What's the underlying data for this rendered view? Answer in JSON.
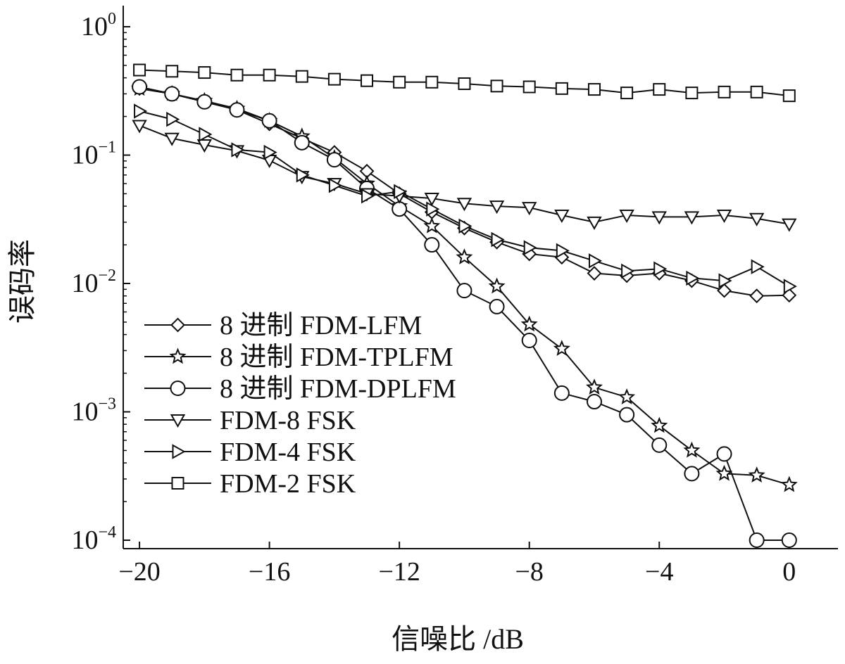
{
  "chart_data": {
    "type": "line",
    "xlabel": "信噪比 /dB",
    "ylabel": "误码率",
    "yscale": "log",
    "xlim": [
      -20.5,
      1.5
    ],
    "ylim": [
      0.0001,
      1
    ],
    "xticks": [
      -20,
      -16,
      -12,
      -8,
      -4,
      0
    ],
    "xtick_labels": [
      "−20",
      "−16",
      "−12",
      "−8",
      "−4",
      "0"
    ],
    "yticks": [
      {
        "value": 1,
        "base": "10",
        "exp": "0"
      },
      {
        "value": 0.1,
        "base": "10",
        "exp": "−1"
      },
      {
        "value": 0.01,
        "base": "10",
        "exp": "−2"
      },
      {
        "value": 0.001,
        "base": "10",
        "exp": "−3"
      },
      {
        "value": 0.0001,
        "base": "10",
        "exp": "−4"
      }
    ],
    "grid": false,
    "legend_position": "lower-left",
    "x": [
      -20,
      -19,
      -18,
      -17,
      -16,
      -15,
      -14,
      -13,
      -12,
      -11,
      -10,
      -9,
      -8,
      -7,
      -6,
      -5,
      -4,
      -3,
      -2,
      -1,
      0
    ],
    "series": [
      {
        "name": "8 进制 FDM-LFM",
        "marker": "diamond",
        "values": [
          0.33,
          0.3,
          0.26,
          0.225,
          0.175,
          0.135,
          0.105,
          0.075,
          0.05,
          0.036,
          0.027,
          0.021,
          0.017,
          0.016,
          0.012,
          0.0115,
          0.012,
          0.0105,
          0.0088,
          0.008,
          0.0081
        ]
      },
      {
        "name": "8 进制 FDM-TPLFM",
        "marker": "star",
        "values": [
          0.33,
          0.3,
          0.265,
          0.23,
          0.185,
          0.14,
          0.095,
          0.06,
          0.04,
          0.028,
          0.016,
          0.0095,
          0.0048,
          0.0031,
          0.00155,
          0.0013,
          0.00078,
          0.0005,
          0.00033,
          0.00032,
          0.00027
        ]
      },
      {
        "name": "8 进制 FDM-DPLFM",
        "marker": "circle",
        "values": [
          0.34,
          0.3,
          0.26,
          0.225,
          0.185,
          0.125,
          0.092,
          0.055,
          0.038,
          0.02,
          0.0088,
          0.0066,
          0.0036,
          0.0014,
          0.0012,
          0.00095,
          0.00055,
          0.00033,
          0.00047,
          0.0001,
          0.0001
        ]
      },
      {
        "name": "FDM-8 FSK",
        "marker": "triangle-down",
        "values": [
          0.17,
          0.135,
          0.12,
          0.108,
          0.091,
          0.068,
          0.06,
          0.05,
          0.048,
          0.046,
          0.042,
          0.04,
          0.039,
          0.034,
          0.03,
          0.034,
          0.033,
          0.033,
          0.034,
          0.032,
          0.029
        ]
      },
      {
        "name": "FDM-4 FSK",
        "marker": "triangle-right",
        "values": [
          0.22,
          0.19,
          0.145,
          0.11,
          0.105,
          0.07,
          0.058,
          0.048,
          0.052,
          0.038,
          0.028,
          0.022,
          0.019,
          0.018,
          0.015,
          0.0125,
          0.013,
          0.011,
          0.0105,
          0.0135,
          0.0095
        ]
      },
      {
        "name": "FDM-2 FSK",
        "marker": "square",
        "values": [
          0.46,
          0.45,
          0.44,
          0.42,
          0.42,
          0.41,
          0.39,
          0.38,
          0.37,
          0.37,
          0.36,
          0.345,
          0.34,
          0.33,
          0.325,
          0.305,
          0.325,
          0.305,
          0.31,
          0.31,
          0.29
        ]
      }
    ]
  }
}
